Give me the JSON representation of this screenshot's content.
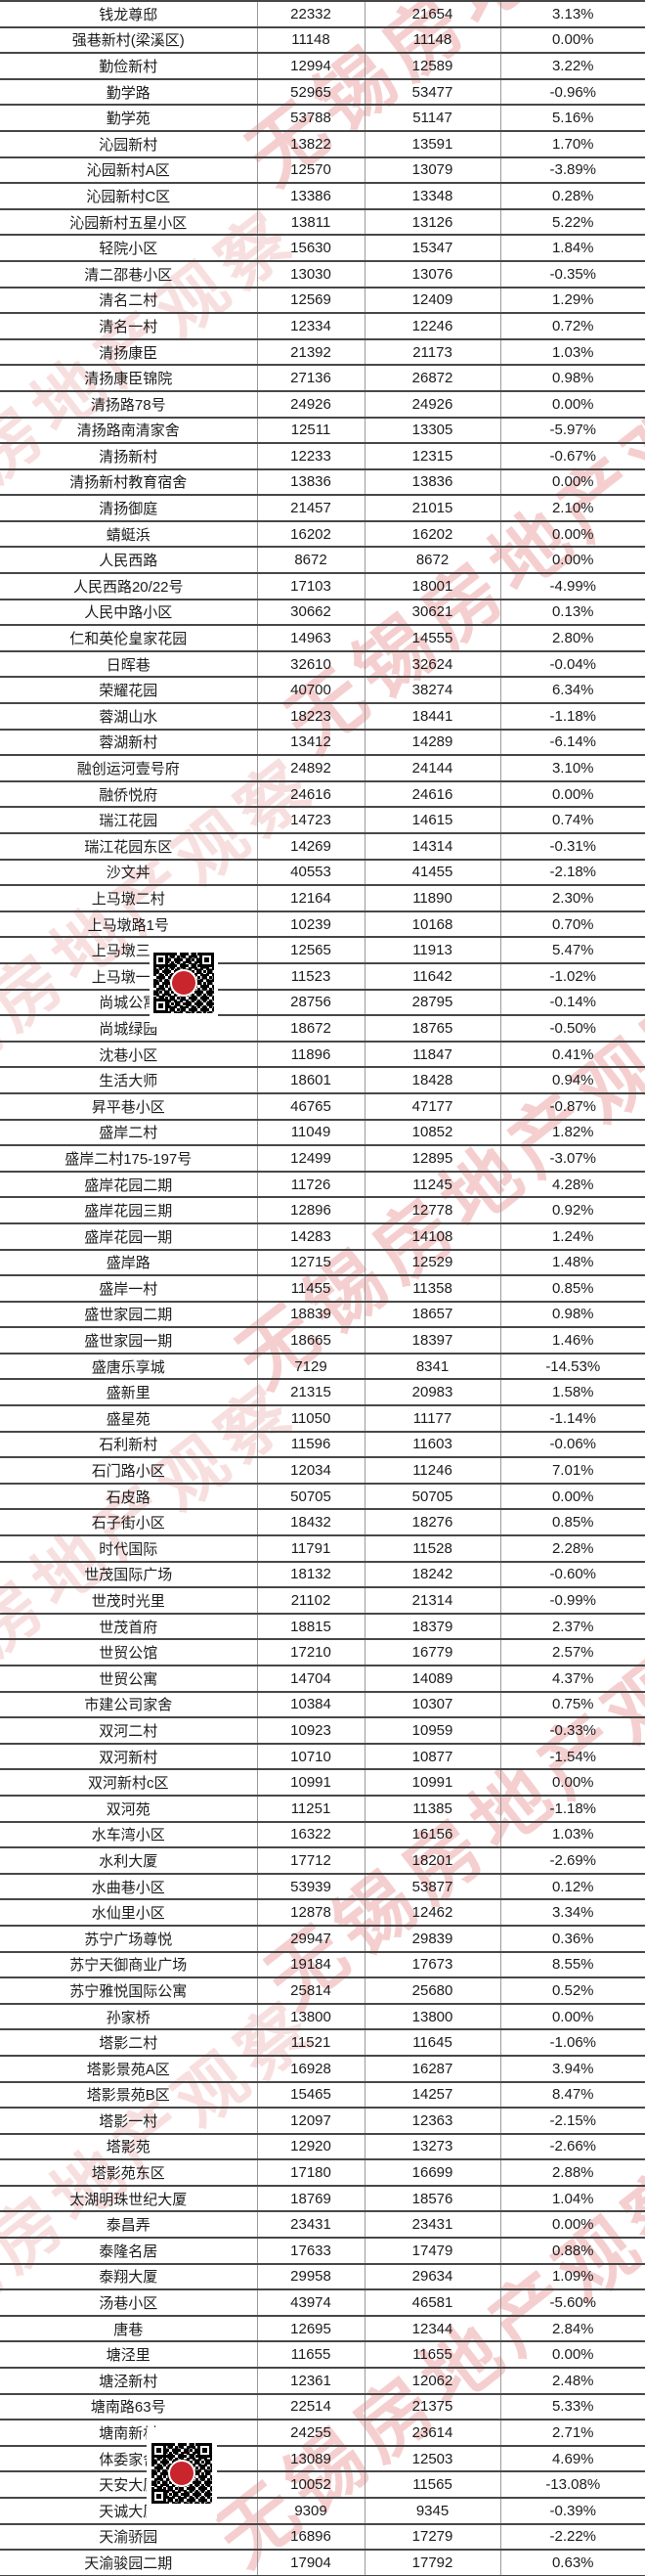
{
  "watermark": {
    "text": "无锡房地产观察"
  },
  "qr": {
    "label": "qr-code"
  },
  "table": {
    "rows": [
      [
        "钱龙尊邸",
        "22332",
        "21654",
        "3.13%"
      ],
      [
        "强巷新村(梁溪区)",
        "11148",
        "11148",
        "0.00%"
      ],
      [
        "勤俭新村",
        "12994",
        "12589",
        "3.22%"
      ],
      [
        "勤学路",
        "52965",
        "53477",
        "-0.96%"
      ],
      [
        "勤学苑",
        "53788",
        "51147",
        "5.16%"
      ],
      [
        "沁园新村",
        "13822",
        "13591",
        "1.70%"
      ],
      [
        "沁园新村A区",
        "12570",
        "13079",
        "-3.89%"
      ],
      [
        "沁园新村C区",
        "13386",
        "13348",
        "0.28%"
      ],
      [
        "沁园新村五星小区",
        "13811",
        "13126",
        "5.22%"
      ],
      [
        "轻院小区",
        "15630",
        "15347",
        "1.84%"
      ],
      [
        "清二邵巷小区",
        "13030",
        "13076",
        "-0.35%"
      ],
      [
        "清名二村",
        "12569",
        "12409",
        "1.29%"
      ],
      [
        "清名一村",
        "12334",
        "12246",
        "0.72%"
      ],
      [
        "清扬康臣",
        "21392",
        "21173",
        "1.03%"
      ],
      [
        "清扬康臣锦院",
        "27136",
        "26872",
        "0.98%"
      ],
      [
        "清扬路78号",
        "24926",
        "24926",
        "0.00%"
      ],
      [
        "清扬路南清家舍",
        "12511",
        "13305",
        "-5.97%"
      ],
      [
        "清扬新村",
        "12233",
        "12315",
        "-0.67%"
      ],
      [
        "清扬新村教育宿舍",
        "13836",
        "13836",
        "0.00%"
      ],
      [
        "清扬御庭",
        "21457",
        "21015",
        "2.10%"
      ],
      [
        "蜻蜓浜",
        "16202",
        "16202",
        "0.00%"
      ],
      [
        "人民西路",
        "8672",
        "8672",
        "0.00%"
      ],
      [
        "人民西路20/22号",
        "17103",
        "18001",
        "-4.99%"
      ],
      [
        "人民中路小区",
        "30662",
        "30621",
        "0.13%"
      ],
      [
        "仁和英伦皇家花园",
        "14963",
        "14555",
        "2.80%"
      ],
      [
        "日晖巷",
        "32610",
        "32624",
        "-0.04%"
      ],
      [
        "荣耀花园",
        "40700",
        "38274",
        "6.34%"
      ],
      [
        "蓉湖山水",
        "18223",
        "18441",
        "-1.18%"
      ],
      [
        "蓉湖新村",
        "13412",
        "14289",
        "-6.14%"
      ],
      [
        "融创运河壹号府",
        "24892",
        "24144",
        "3.10%"
      ],
      [
        "融侨悦府",
        "24616",
        "24616",
        "0.00%"
      ],
      [
        "瑞江花园",
        "14723",
        "14615",
        "0.74%"
      ],
      [
        "瑞江花园东区",
        "14269",
        "14314",
        "-0.31%"
      ],
      [
        "沙文丼",
        "40553",
        "41455",
        "-2.18%"
      ],
      [
        "上马墩二村",
        "12164",
        "11890",
        "2.30%"
      ],
      [
        "上马墩路1号",
        "10239",
        "10168",
        "0.70%"
      ],
      [
        "上马墩三村",
        "12565",
        "11913",
        "5.47%"
      ],
      [
        "上马墩一村",
        "11523",
        "11642",
        "-1.02%"
      ],
      [
        "尚城公寓",
        "28756",
        "28795",
        "-0.14%"
      ],
      [
        "尚城绿园",
        "18672",
        "18765",
        "-0.50%"
      ],
      [
        "沈巷小区",
        "11896",
        "11847",
        "0.41%"
      ],
      [
        "生活大师",
        "18601",
        "18428",
        "0.94%"
      ],
      [
        "昇平巷小区",
        "46765",
        "47177",
        "-0.87%"
      ],
      [
        "盛岸二村",
        "11049",
        "10852",
        "1.82%"
      ],
      [
        "盛岸二村175-197号",
        "12499",
        "12895",
        "-3.07%"
      ],
      [
        "盛岸花园二期",
        "11726",
        "11245",
        "4.28%"
      ],
      [
        "盛岸花园三期",
        "12896",
        "12778",
        "0.92%"
      ],
      [
        "盛岸花园一期",
        "14283",
        "14108",
        "1.24%"
      ],
      [
        "盛岸路",
        "12715",
        "12529",
        "1.48%"
      ],
      [
        "盛岸一村",
        "11455",
        "11358",
        "0.85%"
      ],
      [
        "盛世家园二期",
        "18839",
        "18657",
        "0.98%"
      ],
      [
        "盛世家园一期",
        "18665",
        "18397",
        "1.46%"
      ],
      [
        "盛唐乐享城",
        "7129",
        "8341",
        "-14.53%"
      ],
      [
        "盛新里",
        "21315",
        "20983",
        "1.58%"
      ],
      [
        "盛星苑",
        "11050",
        "11177",
        "-1.14%"
      ],
      [
        "石利新村",
        "11596",
        "11603",
        "-0.06%"
      ],
      [
        "石门路小区",
        "12034",
        "11246",
        "7.01%"
      ],
      [
        "石皮路",
        "50705",
        "50705",
        "0.00%"
      ],
      [
        "石子街小区",
        "18432",
        "18276",
        "0.85%"
      ],
      [
        "时代国际",
        "11791",
        "11528",
        "2.28%"
      ],
      [
        "世茂国际广场",
        "18132",
        "18242",
        "-0.60%"
      ],
      [
        "世茂时光里",
        "21102",
        "21314",
        "-0.99%"
      ],
      [
        "世茂首府",
        "18815",
        "18379",
        "2.37%"
      ],
      [
        "世贸公馆",
        "17210",
        "16779",
        "2.57%"
      ],
      [
        "世贸公寓",
        "14704",
        "14089",
        "4.37%"
      ],
      [
        "市建公司家舍",
        "10384",
        "10307",
        "0.75%"
      ],
      [
        "双河二村",
        "10923",
        "10959",
        "-0.33%"
      ],
      [
        "双河新村",
        "10710",
        "10877",
        "-1.54%"
      ],
      [
        "双河新村c区",
        "10991",
        "10991",
        "0.00%"
      ],
      [
        "双河苑",
        "11251",
        "11385",
        "-1.18%"
      ],
      [
        "水车湾小区",
        "16322",
        "16156",
        "1.03%"
      ],
      [
        "水利大厦",
        "17712",
        "18201",
        "-2.69%"
      ],
      [
        "水曲巷小区",
        "53939",
        "53877",
        "0.12%"
      ],
      [
        "水仙里小区",
        "12878",
        "12462",
        "3.34%"
      ],
      [
        "苏宁广场尊悦",
        "29947",
        "29839",
        "0.36%"
      ],
      [
        "苏宁天御商业广场",
        "19184",
        "17673",
        "8.55%"
      ],
      [
        "苏宁雅悦国际公寓",
        "25814",
        "25680",
        "0.52%"
      ],
      [
        "孙家桥",
        "13800",
        "13800",
        "0.00%"
      ],
      [
        "塔影二村",
        "11521",
        "11645",
        "-1.06%"
      ],
      [
        "塔影景苑A区",
        "16928",
        "16287",
        "3.94%"
      ],
      [
        "塔影景苑B区",
        "15465",
        "14257",
        "8.47%"
      ],
      [
        "塔影一村",
        "12097",
        "12363",
        "-2.15%"
      ],
      [
        "塔影苑",
        "12920",
        "13273",
        "-2.66%"
      ],
      [
        "塔影苑东区",
        "17180",
        "16699",
        "2.88%"
      ],
      [
        "太湖明珠世纪大厦",
        "18769",
        "18576",
        "1.04%"
      ],
      [
        "泰昌弄",
        "23431",
        "23431",
        "0.00%"
      ],
      [
        "泰隆名居",
        "17633",
        "17479",
        "0.88%"
      ],
      [
        "泰翔大厦",
        "29958",
        "29634",
        "1.09%"
      ],
      [
        "汤巷小区",
        "43974",
        "46581",
        "-5.60%"
      ],
      [
        "唐巷",
        "12695",
        "12344",
        "2.84%"
      ],
      [
        "塘泾里",
        "11655",
        "11655",
        "0.00%"
      ],
      [
        "塘泾新村",
        "12361",
        "12062",
        "2.48%"
      ],
      [
        "塘南路63号",
        "22514",
        "21375",
        "5.33%"
      ],
      [
        "塘南新村",
        "24255",
        "23614",
        "2.71%"
      ],
      [
        "体委家舍",
        "13089",
        "12503",
        "4.69%"
      ],
      [
        "天安大厦",
        "10052",
        "11565",
        "-13.08%"
      ],
      [
        "天诚大厦",
        "9309",
        "9345",
        "-0.39%"
      ],
      [
        "天渝骄园",
        "16896",
        "17279",
        "-2.22%"
      ],
      [
        "天渝骏园二期",
        "17904",
        "17792",
        "0.63%"
      ]
    ]
  }
}
